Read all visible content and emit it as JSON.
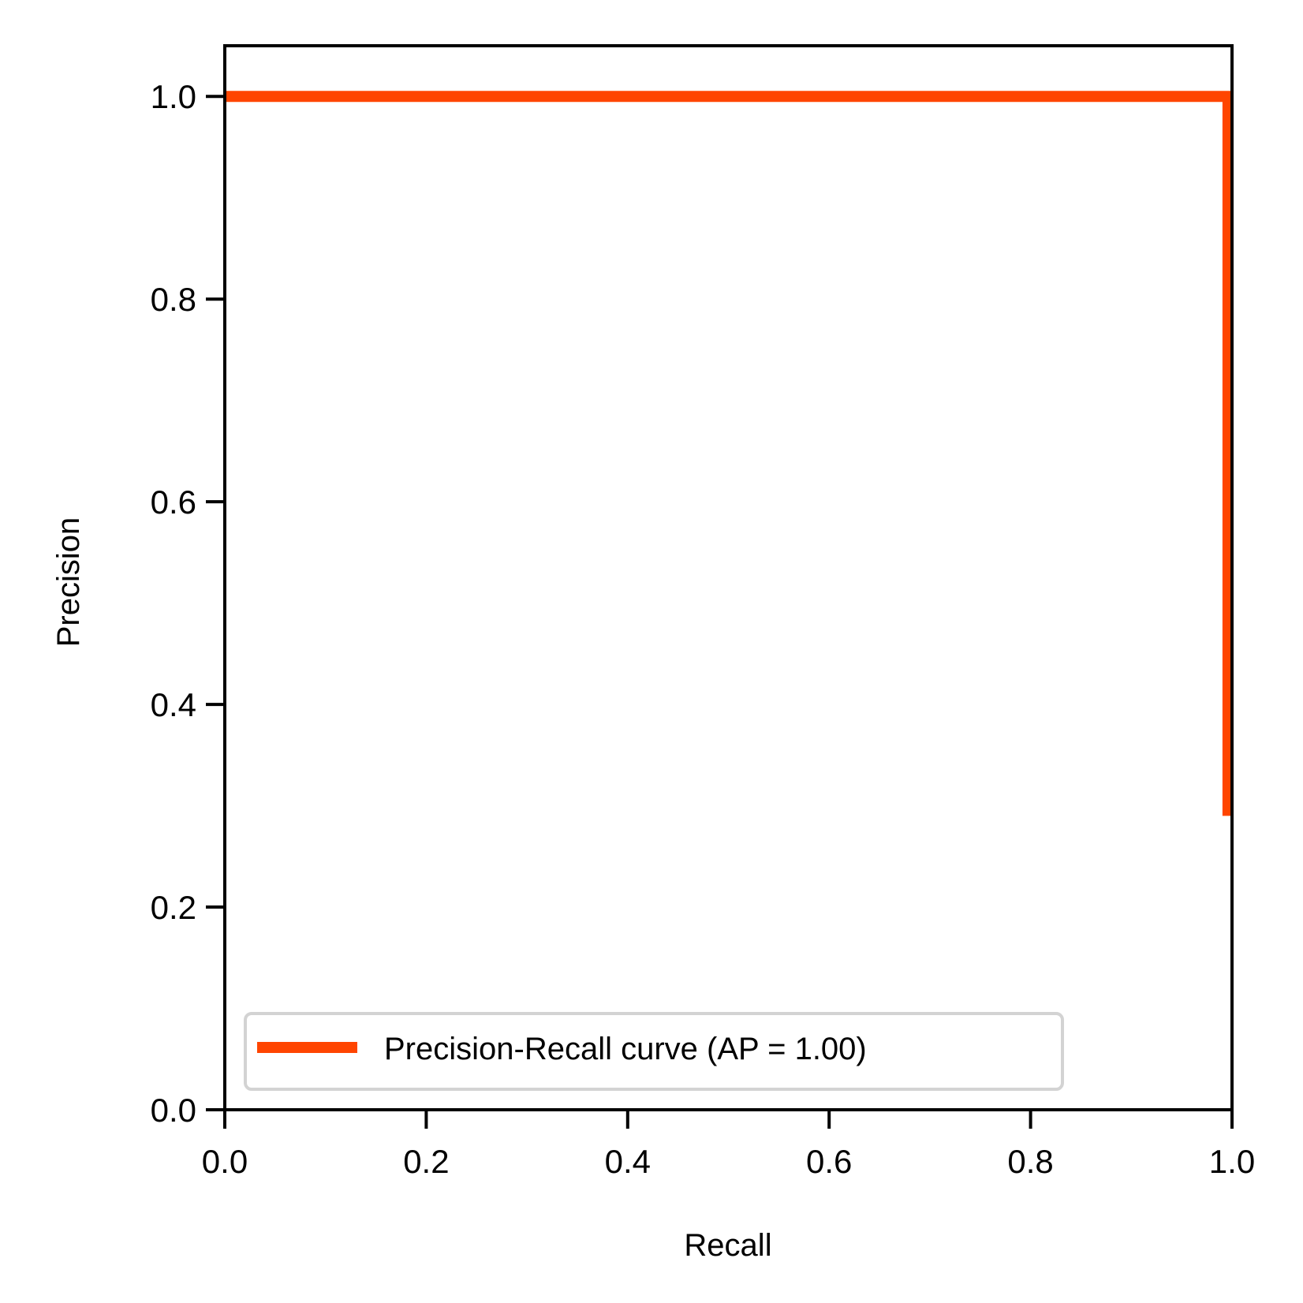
{
  "chart_data": {
    "type": "line",
    "title": "",
    "xlabel": "Recall",
    "ylabel": "Precision",
    "xlim": [
      0.0,
      1.0
    ],
    "ylim": [
      0.0,
      1.05
    ],
    "xticks": [
      "0.0",
      "0.2",
      "0.4",
      "0.6",
      "0.8",
      "1.0"
    ],
    "yticks": [
      "0.0",
      "0.2",
      "0.4",
      "0.6",
      "0.8",
      "1.0"
    ],
    "grid": false,
    "legend_position": "lower-left",
    "series": [
      {
        "name": "Precision-Recall curve (AP = 1.00)",
        "color": "#ff4500",
        "step": true,
        "x": [
          0.0,
          0.996,
          0.996
        ],
        "y": [
          1.0,
          1.0,
          0.29
        ]
      }
    ]
  }
}
